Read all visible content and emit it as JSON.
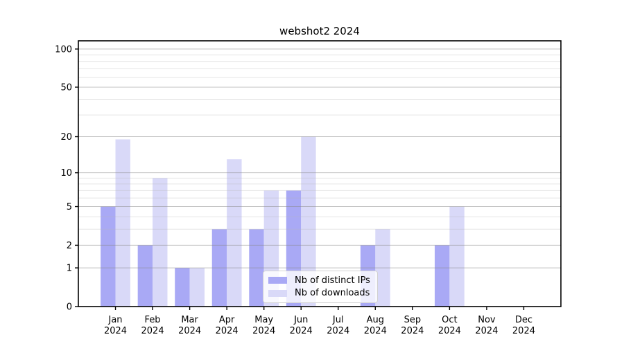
{
  "background": "#ffffff",
  "chart_data": {
    "type": "bar",
    "title": "webshot2 2024",
    "categories": [
      {
        "month": "Jan",
        "year": "2024"
      },
      {
        "month": "Feb",
        "year": "2024"
      },
      {
        "month": "Mar",
        "year": "2024"
      },
      {
        "month": "Apr",
        "year": "2024"
      },
      {
        "month": "May",
        "year": "2024"
      },
      {
        "month": "Jun",
        "year": "2024"
      },
      {
        "month": "Jul",
        "year": "2024"
      },
      {
        "month": "Aug",
        "year": "2024"
      },
      {
        "month": "Sep",
        "year": "2024"
      },
      {
        "month": "Oct",
        "year": "2024"
      },
      {
        "month": "Nov",
        "year": "2024"
      },
      {
        "month": "Dec",
        "year": "2024"
      }
    ],
    "series": [
      {
        "name": "Nb of distinct IPs",
        "color": "#a9a9f5",
        "values": [
          5,
          2,
          1,
          3,
          3,
          7,
          0,
          2,
          0,
          2,
          0,
          0
        ]
      },
      {
        "name": "Nb of downloads",
        "color": "#d9d9f8",
        "values": [
          19,
          9,
          1,
          13,
          7,
          20,
          0,
          3,
          0,
          5,
          0,
          0
        ]
      }
    ],
    "xlabel": "",
    "ylabel": "",
    "yscale": "log1p",
    "ylim": [
      0,
      116
    ],
    "y_major_ticks": [
      0,
      1,
      2,
      5,
      10,
      20,
      50,
      100
    ],
    "y_minor_gridlines": [
      3,
      4,
      6,
      7,
      8,
      9,
      30,
      40,
      60,
      70,
      80,
      90
    ],
    "grid": true,
    "legend_position": "lower center",
    "colors": {
      "axis": "#000000",
      "major_grid": "rgba(140,140,140,0.55)",
      "minor_grid": "rgba(180,180,180,0.35)",
      "tick_text": "#000000"
    }
  }
}
